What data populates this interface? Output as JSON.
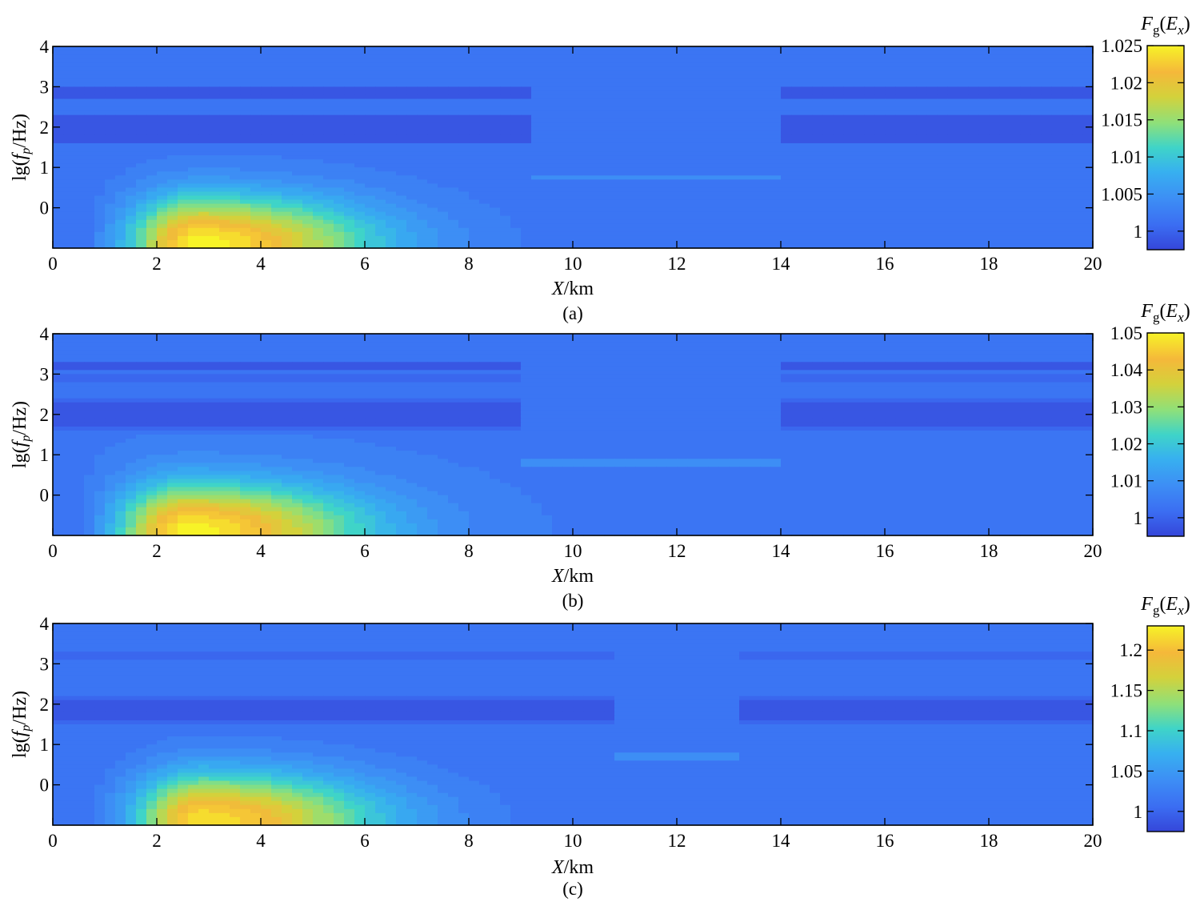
{
  "chart_data": [
    {
      "type": "heatmap",
      "subtype": "filled-contour",
      "panel_label": "(a)",
      "xlabel": {
        "italic": "X",
        "rest": "/km"
      },
      "ylabel": {
        "prefix": "lg(",
        "italic": "f",
        "sub": "p",
        "rest": "/Hz)"
      },
      "x_ticks": [
        "0",
        "2",
        "4",
        "6",
        "8",
        "10",
        "12",
        "14",
        "16",
        "18",
        "20"
      ],
      "y_ticks": [
        "4",
        "3",
        "2",
        "1",
        "0"
      ],
      "xlim": [
        0,
        20
      ],
      "ylim": [
        -1,
        4
      ],
      "colorbar": {
        "title": {
          "main": "F",
          "sub": "g",
          "arg": "E",
          "argsub": "x"
        },
        "ticks": [
          "1.025",
          "1.02",
          "1.015",
          "1.01",
          "1.005",
          "1"
        ],
        "tick_values": [
          1.025,
          1.02,
          1.015,
          1.01,
          1.005,
          1.0
        ],
        "range": [
          0.9975,
          1.025
        ]
      },
      "features": {
        "background_value": 1.0015,
        "bands": [
          {
            "y_center": 2.85,
            "half_width": 0.14,
            "value": 0.998
          },
          {
            "y_center": 1.95,
            "half_width": 0.36,
            "value": 0.998
          }
        ],
        "peak": {
          "x": 2.8,
          "y": -0.9,
          "value": 1.025
        },
        "secondary_ridge": {
          "x_range": [
            9.2,
            14
          ],
          "y": 0.75,
          "value": 1.004
        }
      }
    },
    {
      "type": "heatmap",
      "subtype": "filled-contour",
      "panel_label": "(b)",
      "xlabel": {
        "italic": "X",
        "rest": "/km"
      },
      "ylabel": {
        "prefix": "lg(",
        "italic": "f",
        "sub": "p",
        "rest": "/Hz)"
      },
      "x_ticks": [
        "0",
        "2",
        "4",
        "6",
        "8",
        "10",
        "12",
        "14",
        "16",
        "18",
        "20"
      ],
      "y_ticks": [
        "4",
        "3",
        "2",
        "1",
        "0"
      ],
      "xlim": [
        0,
        20
      ],
      "ylim": [
        -1,
        4
      ],
      "colorbar": {
        "title": {
          "main": "F",
          "sub": "g",
          "arg": "E",
          "argsub": "x"
        },
        "ticks": [
          "1.05",
          "1.04",
          "1.03",
          "1.02",
          "1.01",
          "1"
        ],
        "tick_values": [
          1.05,
          1.04,
          1.03,
          1.02,
          1.01,
          1.0
        ],
        "range": [
          0.995,
          1.05
        ]
      },
      "features": {
        "background_value": 1.004,
        "bands": [
          {
            "y_center": 3.2,
            "half_width": 0.1,
            "value": 0.997
          },
          {
            "y_center": 2.9,
            "half_width": 0.1,
            "value": 0.999
          },
          {
            "y_center": 2.0,
            "half_width": 0.4,
            "value": 0.996
          }
        ],
        "peak": {
          "x": 2.6,
          "y": -0.9,
          "value": 1.05
        },
        "secondary_ridge": {
          "x_range": [
            9.0,
            14
          ],
          "y": 0.8,
          "value": 1.01
        }
      }
    },
    {
      "type": "heatmap",
      "subtype": "filled-contour",
      "panel_label": "(c)",
      "xlabel": {
        "italic": "X",
        "rest": "/km"
      },
      "ylabel": {
        "prefix": "lg(",
        "italic": "f",
        "sub": "p",
        "rest": "/Hz)"
      },
      "x_ticks": [
        "0",
        "2",
        "4",
        "6",
        "8",
        "10",
        "12",
        "14",
        "16",
        "18",
        "20"
      ],
      "y_ticks": [
        "4",
        "3",
        "2",
        "1",
        "0"
      ],
      "xlim": [
        0,
        20
      ],
      "ylim": [
        -1,
        4
      ],
      "colorbar": {
        "title": {
          "main": "F",
          "sub": "g",
          "arg": "E",
          "argsub": "x"
        },
        "ticks": [
          "1.2",
          "1.15",
          "1.1",
          "1.05",
          "1"
        ],
        "tick_values": [
          1.2,
          1.15,
          1.1,
          1.05,
          1.0
        ],
        "range": [
          0.975,
          1.23
        ]
      },
      "features": {
        "background_value": 1.01,
        "bands": [
          {
            "y_center": 3.2,
            "half_width": 0.1,
            "value": 0.999
          },
          {
            "y_center": 1.85,
            "half_width": 0.35,
            "value": 0.985
          }
        ],
        "peak": {
          "x": 2.9,
          "y": -0.9,
          "value": 1.22
        },
        "secondary_ridge": {
          "x_range": [
            10.8,
            13.2
          ],
          "y": 0.7,
          "value": 1.06
        }
      }
    }
  ]
}
